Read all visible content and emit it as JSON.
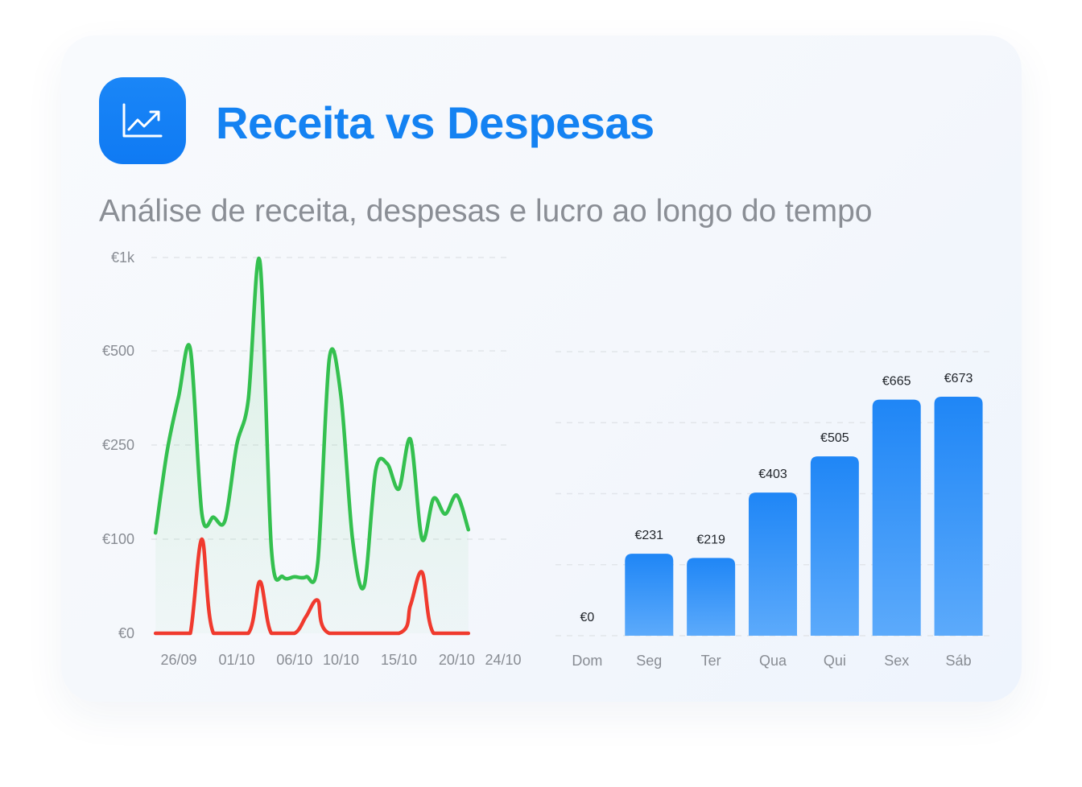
{
  "header": {
    "title": "Receita vs Despesas",
    "subtitle": "Análise de receita, despesas e lucro ao longo do tempo",
    "icon": "trending-up-icon"
  },
  "colors": {
    "accent": "#1482f2",
    "revenue": "#34c04f",
    "expenses": "#f03a2e",
    "bars": "#2d8ff7"
  },
  "chart_data": [
    {
      "type": "area",
      "title": "",
      "xlabel": "",
      "ylabel": "",
      "y_ticks": [
        {
          "value": 0,
          "label": "€0"
        },
        {
          "value": 100,
          "label": "€100"
        },
        {
          "value": 250,
          "label": "€250"
        },
        {
          "value": 500,
          "label": "€500"
        },
        {
          "value": 1000,
          "label": "€1k"
        }
      ],
      "x_ticks": [
        {
          "x": "2024-09-26",
          "label": "26/09"
        },
        {
          "x": "2024-10-01",
          "label": "01/10"
        },
        {
          "x": "2024-10-06",
          "label": "06/10"
        },
        {
          "x": "2024-10-10",
          "label": "10/10"
        },
        {
          "x": "2024-10-15",
          "label": "15/10"
        },
        {
          "x": "2024-10-20",
          "label": "20/10"
        },
        {
          "x": "2024-10-24",
          "label": "24/10"
        }
      ],
      "ylim": [
        0,
        1000
      ],
      "grid": true,
      "series": [
        {
          "values": [
            {
              "x": "2024-09-24",
              "y": 110
            },
            {
              "x": "2024-09-25",
              "y": 240
            },
            {
              "x": "2024-09-26",
              "y": 380
            },
            {
              "x": "2024-09-27",
              "y": 510
            },
            {
              "x": "2024-09-28",
              "y": 140
            },
            {
              "x": "2024-09-29",
              "y": 135
            },
            {
              "x": "2024-09-30",
              "y": 130
            },
            {
              "x": "2024-10-01",
              "y": 250
            },
            {
              "x": "2024-10-02",
              "y": 370
            },
            {
              "x": "2024-10-03",
              "y": 980
            },
            {
              "x": "2024-10-04",
              "y": 90
            },
            {
              "x": "2024-10-05",
              "y": 60
            },
            {
              "x": "2024-10-06",
              "y": 60
            },
            {
              "x": "2024-10-07",
              "y": 60
            },
            {
              "x": "2024-10-08",
              "y": 75
            },
            {
              "x": "2024-10-09",
              "y": 480
            },
            {
              "x": "2024-10-10",
              "y": 380
            },
            {
              "x": "2024-10-11",
              "y": 100
            },
            {
              "x": "2024-10-12",
              "y": 50
            },
            {
              "x": "2024-10-13",
              "y": 210
            },
            {
              "x": "2024-10-14",
              "y": 220
            },
            {
              "x": "2024-10-15",
              "y": 180
            },
            {
              "x": "2024-10-16",
              "y": 265
            },
            {
              "x": "2024-10-17",
              "y": 100
            },
            {
              "x": "2024-10-18",
              "y": 165
            },
            {
              "x": "2024-10-19",
              "y": 140
            },
            {
              "x": "2024-10-20",
              "y": 170
            },
            {
              "x": "2024-10-21",
              "y": 115
            }
          ]
        },
        {
          "values": [
            {
              "x": "2024-09-24",
              "y": 0
            },
            {
              "x": "2024-09-26",
              "y": 0
            },
            {
              "x": "2024-09-27",
              "y": 0
            },
            {
              "x": "2024-09-28",
              "y": 100
            },
            {
              "x": "2024-09-29",
              "y": 0
            },
            {
              "x": "2024-10-02",
              "y": 0
            },
            {
              "x": "2024-10-03",
              "y": 55
            },
            {
              "x": "2024-10-04",
              "y": 0
            },
            {
              "x": "2024-10-06",
              "y": 0
            },
            {
              "x": "2024-10-07",
              "y": 18
            },
            {
              "x": "2024-10-08",
              "y": 35
            },
            {
              "x": "2024-10-09",
              "y": 0
            },
            {
              "x": "2024-10-15",
              "y": 0
            },
            {
              "x": "2024-10-16",
              "y": 30
            },
            {
              "x": "2024-10-17",
              "y": 65
            },
            {
              "x": "2024-10-18",
              "y": 0
            },
            {
              "x": "2024-10-21",
              "y": 0
            }
          ]
        }
      ]
    },
    {
      "type": "bar",
      "title": "",
      "xlabel": "",
      "ylabel": "",
      "categories": [
        "Dom",
        "Seg",
        "Ter",
        "Qua",
        "Qui",
        "Sex",
        "Sáb"
      ],
      "values": [
        0,
        231,
        219,
        403,
        505,
        665,
        673
      ],
      "value_labels": [
        "€0",
        "€231",
        "€219",
        "€403",
        "€505",
        "€665",
        "€673"
      ],
      "ylim": [
        0,
        800
      ],
      "grid": true
    }
  ]
}
